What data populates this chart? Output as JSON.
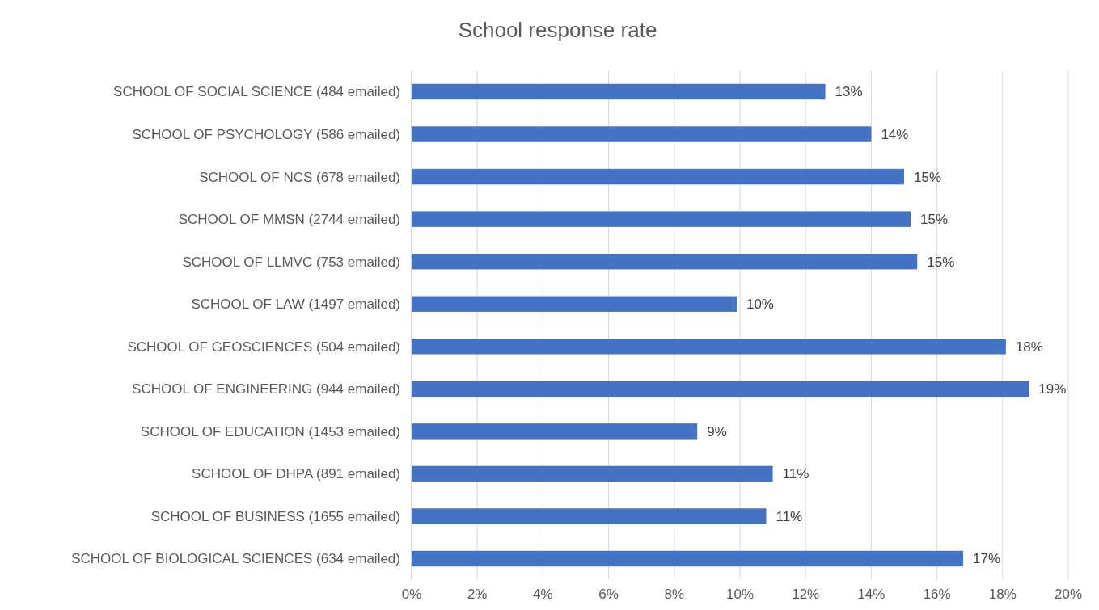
{
  "chart_data": {
    "type": "bar",
    "orientation": "horizontal",
    "title": "School response rate",
    "categories": [
      "SCHOOL OF SOCIAL SCIENCE (484 emailed)",
      "SCHOOL OF PSYCHOLOGY (586 emailed)",
      "SCHOOL OF NCS (678 emailed)",
      "SCHOOL OF MMSN (2744 emailed)",
      "SCHOOL OF LLMVC (753 emailed)",
      "SCHOOL OF LAW (1497 emailed)",
      "SCHOOL OF GEOSCIENCES (504 emailed)",
      "SCHOOL OF ENGINEERING (944 emailed)",
      "SCHOOL OF EDUCATION (1453 emailed)",
      "SCHOOL OF DHPA (891 emailed)",
      "SCHOOL OF BUSINESS (1655 emailed)",
      "SCHOOL OF BIOLOGICAL SCIENCES (634 emailed)"
    ],
    "values": [
      12.6,
      14.0,
      15.0,
      15.2,
      15.4,
      9.9,
      18.1,
      18.8,
      8.7,
      11.0,
      10.8,
      16.8
    ],
    "value_labels": [
      "13%",
      "14%",
      "15%",
      "15%",
      "15%",
      "10%",
      "18%",
      "19%",
      "9%",
      "11%",
      "11%",
      "17%"
    ],
    "color": "#4472c4",
    "xlim": [
      0,
      20
    ],
    "xticks": [
      {
        "value": 0,
        "label": "0%"
      },
      {
        "value": 2,
        "label": "2%"
      },
      {
        "value": 4,
        "label": "4%"
      },
      {
        "value": 6,
        "label": "6%"
      },
      {
        "value": 8,
        "label": "8%"
      },
      {
        "value": 10,
        "label": "10%"
      },
      {
        "value": 12,
        "label": "12%"
      },
      {
        "value": 14,
        "label": "14%"
      },
      {
        "value": 16,
        "label": "16%"
      },
      {
        "value": 18,
        "label": "18%"
      },
      {
        "value": 20,
        "label": "20%"
      }
    ],
    "grid": "x"
  }
}
